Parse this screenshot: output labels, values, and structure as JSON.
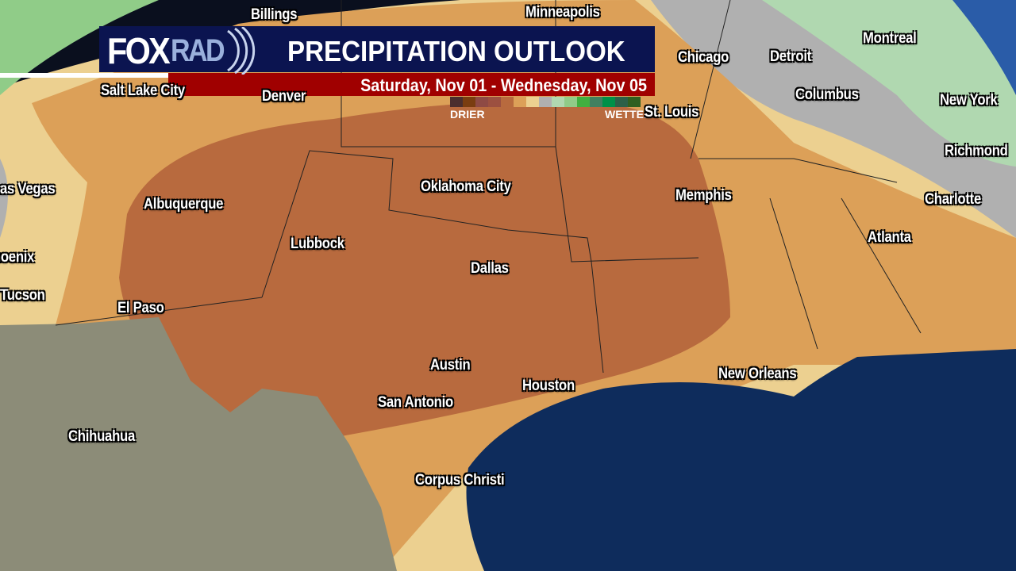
{
  "header": {
    "logo_text": "FOXRAD",
    "logo_fox": "FOX",
    "logo_rad": "RAD",
    "title": "PRECIPITATION OUTLOOK",
    "dates": "Saturday, Nov 01 - Wednesday, Nov 05"
  },
  "legend": {
    "low_label": "DRIER",
    "high_label": "WETTER",
    "colors": [
      "#4a2e2e",
      "#7a3d10",
      "#8e4a44",
      "#9c5040",
      "#b86a3e",
      "#dca058",
      "#ecd090",
      "#b0b0b0",
      "#b0d8b0",
      "#90cc88",
      "#40b040",
      "#408060",
      "#009048",
      "#2c6048",
      "#306020"
    ]
  },
  "map_colors": {
    "much_drier": "#b86a3e",
    "drier": "#dca058",
    "slightly_drier": "#ecd090",
    "near_normal": "#b0b0b0",
    "wetter": "#b0d8b0",
    "ocean": "#0e2c5c",
    "land_mexico": "#8c8c78"
  },
  "cities": [
    "Billings",
    "Minneapolis",
    "Montreal",
    "Salt Lake City",
    "Denver",
    "Chicago",
    "Detroit",
    "Columbus",
    "New York",
    "St. Louis",
    "Richmond",
    "Las Vegas",
    "Albuquerque",
    "Oklahoma City",
    "Memphis",
    "Charlotte",
    "Atlanta",
    "Lubbock",
    "Dallas",
    "Phoenix",
    "Tucson",
    "El Paso",
    "Austin",
    "Houston",
    "New Orleans",
    "San Antonio",
    "Chihuahua",
    "Corpus Christi"
  ]
}
